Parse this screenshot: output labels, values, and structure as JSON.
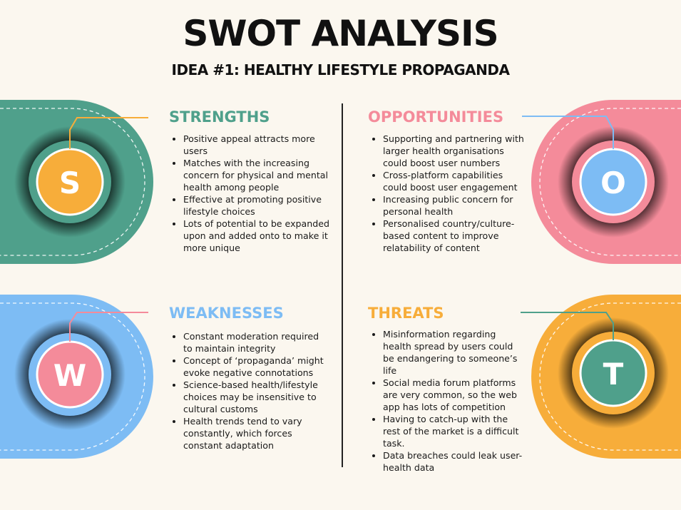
{
  "title": "SWOT ANALYSIS",
  "subtitle": "IDEA #1: HEALTHY LIFESTYLE PROPAGANDA",
  "colors": {
    "strengths": "#4fa08b",
    "opportunities": "#f48b9a",
    "weaknesses": "#7dbcf4",
    "threats": "#f7ad3a"
  },
  "quadrants": {
    "strengths": {
      "heading": "STRENGTHS",
      "letter": "S",
      "points": [
        "Positive appeal attracts more users",
        "Matches with the increasing concern for physical and mental health among people",
        "Effective at promoting positive lifestyle choices",
        "Lots of potential to be expanded upon and added onto to make it more unique"
      ]
    },
    "opportunities": {
      "heading": "OPPORTUNITIES",
      "letter": "O",
      "points": [
        "Supporting and partnering with larger health organisations could boost user numbers",
        "Cross-platform capabilities could boost user engagement",
        "Increasing public concern for personal health",
        "Personalised country/culture-based content to improve relatability of content"
      ]
    },
    "weaknesses": {
      "heading": "WEAKNESSES",
      "letter": "W",
      "points": [
        "Constant moderation required to maintain integrity",
        "Concept of ‘propaganda’ might evoke negative connotations",
        "Science-based health/lifestyle choices may be insensitive to cultural customs",
        "Health trends tend to vary constantly, which forces constant adaptation"
      ]
    },
    "threats": {
      "heading": "THREATS",
      "letter": "T",
      "points": [
        "Misinformation regarding health spread by users could be endangering to someone’s life",
        "Social media forum platforms are very common, so the web app has lots of competition",
        "Having to catch-up with the rest of the market is a difficult task.",
        "Data breaches could leak user-health data"
      ]
    }
  }
}
